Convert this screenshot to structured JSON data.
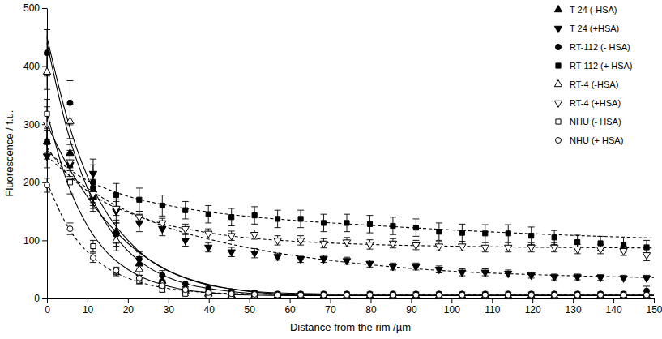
{
  "chart_data": {
    "type": "scatter",
    "x_label": "Distance from the rim /µm",
    "y_label": "Fluorescence / f.u.",
    "xlim": [
      0,
      150
    ],
    "ylim": [
      0,
      500
    ],
    "xticks": [
      0,
      10,
      20,
      30,
      40,
      50,
      60,
      70,
      80,
      90,
      100,
      110,
      120,
      130,
      140,
      150
    ],
    "yticks": [
      0,
      100,
      200,
      300,
      400,
      500
    ],
    "grid": false,
    "legend": "top-right",
    "x": [
      0,
      5.7,
      11.4,
      17.1,
      22.8,
      28.5,
      34.2,
      39.9,
      45.6,
      51.3,
      57,
      62.7,
      68.4,
      74.1,
      79.8,
      85.5,
      91.2,
      96.9,
      102.6,
      108.3,
      114,
      119.7,
      125.4,
      131.1,
      136.8,
      142.5,
      148.2
    ],
    "fit_x": [
      0,
      5,
      10,
      15,
      20,
      25,
      30,
      35,
      40,
      50,
      60,
      80,
      100,
      125,
      150
    ],
    "series": [
      {
        "name": "T 24 (-HSA)",
        "color": "#000000",
        "marker": "triangle-up",
        "line_style": "solid",
        "values": [
          270,
          250,
          175,
          115,
          60,
          30,
          15,
          8,
          5,
          4,
          4,
          4,
          3,
          3,
          3,
          3,
          3,
          3,
          3,
          3,
          3,
          3,
          3,
          3,
          3,
          3,
          3
        ],
        "errors": [
          30,
          25,
          25,
          20,
          12,
          8,
          5,
          3,
          2,
          2,
          2,
          2,
          2,
          2,
          2,
          2,
          2,
          2,
          2,
          2,
          2,
          2,
          2,
          2,
          2,
          2,
          2
        ],
        "fit": [
          300,
          230,
          175,
          130,
          95,
          68,
          48,
          34,
          24,
          12,
          7,
          5,
          5,
          5,
          5
        ]
      },
      {
        "name": "T 24 (+HSA)",
        "color": "#000000",
        "marker": "triangle-down",
        "line_style": "dashed",
        "values": [
          245,
          230,
          215,
          150,
          130,
          120,
          100,
          88,
          80,
          78,
          72,
          68,
          68,
          65,
          60,
          55,
          55,
          50,
          45,
          45,
          43,
          40,
          37,
          37,
          36,
          35,
          35
        ],
        "errors": [
          20,
          25,
          25,
          20,
          15,
          12,
          10,
          8,
          8,
          8,
          6,
          6,
          6,
          6,
          6,
          6,
          6,
          6,
          6,
          6,
          6,
          5,
          5,
          5,
          5,
          5,
          5
        ],
        "fit": [
          245,
          215,
          190,
          168,
          150,
          135,
          122,
          111,
          102,
          87,
          75,
          58,
          47,
          40,
          36
        ]
      },
      {
        "name": "RT-112 (- HSA)",
        "color": "#000000",
        "marker": "circle",
        "line_style": "solid",
        "values": [
          423,
          337,
          200,
          110,
          68,
          40,
          25,
          17,
          12,
          10,
          8,
          8,
          8,
          8,
          8,
          8,
          8,
          8,
          8,
          8,
          8,
          8,
          8,
          8,
          8,
          8,
          13
        ],
        "errors": [
          40,
          38,
          30,
          20,
          12,
          8,
          5,
          4,
          3,
          3,
          3,
          3,
          3,
          3,
          3,
          3,
          3,
          3,
          3,
          3,
          3,
          3,
          3,
          3,
          3,
          3,
          8
        ],
        "fit": [
          450,
          310,
          210,
          145,
          100,
          68,
          47,
          33,
          23,
          13,
          9,
          7,
          7,
          7,
          7
        ]
      },
      {
        "name": "RT-112 (+ HSA)",
        "color": "#000000",
        "marker": "square",
        "line_style": "dashed",
        "values": [
          270,
          230,
          190,
          178,
          170,
          160,
          152,
          145,
          140,
          143,
          137,
          137,
          130,
          130,
          128,
          125,
          122,
          115,
          113,
          112,
          112,
          108,
          105,
          97,
          95,
          92,
          88
        ],
        "errors": [
          20,
          20,
          25,
          20,
          20,
          18,
          15,
          15,
          15,
          15,
          15,
          15,
          15,
          15,
          15,
          15,
          15,
          15,
          15,
          15,
          15,
          15,
          12,
          12,
          12,
          12,
          12
        ],
        "fit": [
          255,
          225,
          203,
          188,
          176,
          167,
          160,
          154,
          149,
          141,
          135,
          126,
          118,
          110,
          104
        ]
      },
      {
        "name": "RT-4 (-HSA)",
        "color": "#000000",
        "marker": "triangle-up-open",
        "line_style": "solid",
        "values": [
          390,
          305,
          180,
          100,
          50,
          25,
          12,
          8,
          5,
          4,
          4,
          4,
          4,
          4,
          4,
          4,
          4,
          4,
          4,
          4,
          4,
          4,
          4,
          4,
          4,
          4,
          4
        ],
        "errors": [
          30,
          30,
          25,
          18,
          10,
          6,
          4,
          3,
          2,
          2,
          2,
          2,
          2,
          2,
          2,
          2,
          2,
          2,
          2,
          2,
          2,
          2,
          2,
          2,
          2,
          2,
          2
        ],
        "fit": [
          440,
          290,
          190,
          125,
          82,
          54,
          36,
          24,
          17,
          9,
          6,
          5,
          5,
          5,
          5
        ]
      },
      {
        "name": "RT-4 (+HSA)",
        "color": "#000000",
        "marker": "triangle-down-open",
        "line_style": "dashed",
        "values": [
          300,
          235,
          180,
          155,
          140,
          130,
          120,
          112,
          108,
          110,
          100,
          100,
          95,
          97,
          93,
          95,
          92,
          90,
          90,
          88,
          88,
          88,
          88,
          85,
          85,
          82,
          75
        ],
        "errors": [
          30,
          30,
          20,
          12,
          10,
          8,
          8,
          8,
          8,
          8,
          8,
          8,
          8,
          8,
          8,
          8,
          8,
          8,
          8,
          8,
          8,
          8,
          8,
          8,
          8,
          8,
          10
        ],
        "fit": [
          260,
          215,
          185,
          163,
          148,
          136,
          126,
          119,
          113,
          104,
          99,
          93,
          90,
          88,
          87
        ]
      },
      {
        "name": "NHU (- HSA)",
        "color": "#000000",
        "marker": "square-open",
        "line_style": "solid",
        "values": [
          318,
          200,
          90,
          45,
          30,
          15,
          8,
          5,
          4,
          4,
          4,
          4,
          4,
          4,
          4,
          4,
          4,
          4,
          4,
          4,
          4,
          4,
          4,
          4,
          4,
          4,
          4
        ],
        "errors": [
          25,
          20,
          10,
          6,
          5,
          4,
          3,
          2,
          2,
          2,
          2,
          2,
          2,
          2,
          2,
          2,
          2,
          2,
          2,
          2,
          2,
          2,
          2,
          2,
          2,
          2,
          2
        ],
        "fit": [
          320,
          200,
          125,
          78,
          50,
          32,
          21,
          14,
          10,
          6,
          5,
          5,
          5,
          5,
          5
        ]
      },
      {
        "name": "NHU (+ HSA)",
        "color": "#000000",
        "marker": "circle-open",
        "line_style": "dashed",
        "values": [
          195,
          120,
          70,
          48,
          35,
          22,
          15,
          10,
          8,
          7,
          6,
          6,
          6,
          6,
          6,
          6,
          6,
          6,
          6,
          6,
          6,
          6,
          6,
          6,
          6,
          6,
          6
        ],
        "errors": [
          12,
          10,
          8,
          6,
          5,
          4,
          3,
          2,
          2,
          2,
          2,
          2,
          2,
          2,
          2,
          2,
          2,
          2,
          2,
          2,
          2,
          2,
          2,
          2,
          2,
          2,
          2
        ],
        "fit": [
          200,
          125,
          80,
          52,
          35,
          24,
          17,
          13,
          10,
          8,
          7,
          7,
          7,
          7,
          7
        ]
      }
    ]
  }
}
